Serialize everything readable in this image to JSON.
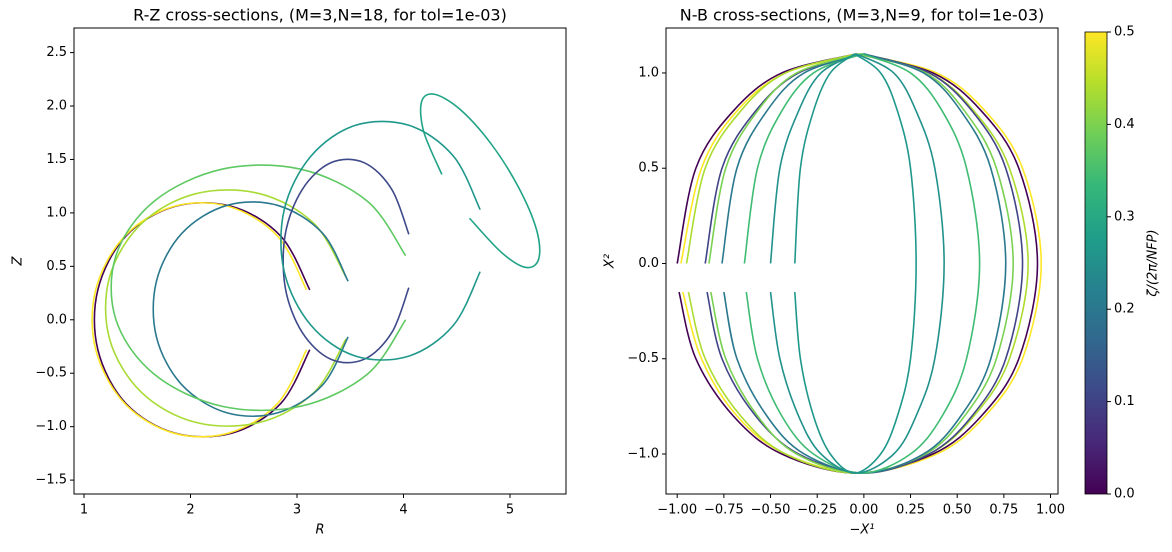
{
  "chart_data": [
    {
      "type": "line",
      "title": "R-Z cross-sections, (M=3,N=18, for tol=1e-03)",
      "xlabel": "R",
      "ylabel": "Z",
      "xlim": [
        0.906,
        5.526
      ],
      "ylim": [
        -1.63,
        2.73
      ],
      "xticks": [
        1,
        2,
        3,
        4,
        5
      ],
      "yticks": [
        {
          "value": -1.5,
          "label": "−1.5"
        },
        {
          "value": -1.0,
          "label": "−1.0"
        },
        {
          "value": -0.5,
          "label": "−0.5"
        },
        {
          "value": 0,
          "label": "0.0"
        },
        0.5,
        {
          "value": 1.0,
          "label": "1.0"
        },
        1.5,
        {
          "value": 2.0,
          "label": "2.0"
        },
        2.5
      ],
      "series": [
        {
          "color": "#440154",
          "x": [
            3.12,
            2.85,
            2.39,
            1.85,
            1.39,
            1.13,
            1.13,
            1.39,
            1.85,
            2.39,
            2.85,
            3.12
          ],
          "y": [
            0.28,
            0.78,
            1.06,
            1.06,
            0.78,
            0.28,
            -0.28,
            -0.78,
            -1.06,
            -1.06,
            -0.78,
            -0.28
          ]
        },
        {
          "color": "#fde725",
          "x": [
            3.09,
            2.82,
            2.36,
            1.84,
            1.38,
            1.11,
            1.11,
            1.38,
            1.84,
            2.36,
            2.82,
            3.09
          ],
          "y": [
            0.28,
            0.78,
            1.06,
            1.06,
            0.78,
            0.28,
            -0.28,
            -0.78,
            -1.06,
            -1.06,
            -0.78,
            -0.28
          ]
        },
        {
          "color": "#a8db34",
          "x": [
            3.46,
            3.16,
            2.65,
            2.05,
            1.54,
            1.24,
            1.24,
            1.54,
            2.05,
            2.65,
            3.16,
            3.46
          ],
          "y": [
            0.4,
            0.9,
            1.18,
            1.18,
            0.9,
            0.4,
            -0.18,
            -0.68,
            -0.96,
            -0.96,
            -0.68,
            -0.18
          ]
        },
        {
          "color": "#2a788e",
          "x": [
            3.48,
            3.24,
            2.82,
            2.34,
            1.92,
            1.68,
            1.68,
            1.92,
            2.34,
            2.82,
            3.24,
            3.48
          ],
          "y": [
            0.36,
            0.81,
            1.07,
            1.07,
            0.81,
            0.36,
            -0.16,
            -0.61,
            -0.87,
            -0.87,
            -0.61,
            -0.16
          ]
        },
        {
          "color": "#5ec962",
          "x": [
            4.02,
            3.66,
            3.03,
            2.3,
            1.66,
            1.3,
            1.3,
            1.66,
            2.3,
            3.03,
            3.66,
            4.02
          ],
          "y": [
            0.6,
            1.11,
            1.41,
            1.41,
            1.11,
            0.6,
            0.0,
            -0.51,
            -0.81,
            -0.81,
            -0.51,
            0.0
          ]
        },
        {
          "color": "#3e4a89",
          "x": [
            4.05,
            3.89,
            3.63,
            3.32,
            3.05,
            2.89,
            2.89,
            3.05,
            3.32,
            3.63,
            3.89,
            4.05
          ],
          "y": [
            0.8,
            1.22,
            1.47,
            1.47,
            1.22,
            0.8,
            0.3,
            -0.12,
            -0.37,
            -0.37,
            -0.12,
            0.3
          ]
        },
        {
          "color": "#1f988b",
          "x": [
            4.72,
            4.47,
            4.05,
            3.55,
            3.13,
            2.88,
            2.88,
            3.13,
            3.55,
            4.05,
            4.47,
            4.72
          ],
          "y": [
            1.03,
            1.53,
            1.82,
            1.82,
            1.53,
            1.03,
            0.45,
            -0.05,
            -0.34,
            -0.34,
            -0.05,
            0.45
          ]
        },
        {
          "color": "#20a386",
          "x": [
            4.62,
            4.92,
            5.15,
            5.27,
            5.25,
            5.08,
            4.82,
            4.53,
            4.29,
            4.17,
            4.19,
            4.36
          ],
          "y": [
            0.95,
            0.63,
            0.49,
            0.57,
            0.84,
            1.24,
            1.65,
            1.97,
            2.11,
            2.04,
            1.76,
            1.36
          ]
        }
      ]
    },
    {
      "type": "line",
      "title": "N-B cross-sections, (M=3,N=9, for tol=1e-03)",
      "xlabel": "−X¹",
      "ylabel": "X²",
      "xlim": [
        -1.06,
        1.04
      ],
      "ylim": [
        -1.21,
        1.236
      ],
      "xticks": [
        {
          "value": -1.0,
          "label": "−1.00"
        },
        {
          "value": -0.75,
          "label": "−0.75"
        },
        {
          "value": -0.5,
          "label": "−0.50"
        },
        {
          "value": -0.25,
          "label": "−0.25"
        },
        {
          "value": 0,
          "label": "0.00"
        },
        0.25,
        {
          "value": 0.5,
          "label": "0.50"
        },
        0.75,
        {
          "value": 1.0,
          "label": "1.00"
        }
      ],
      "yticks": [
        {
          "value": -1.0,
          "label": "−1.0"
        },
        {
          "value": -0.5,
          "label": "−0.5"
        },
        {
          "value": 0,
          "label": "0.0"
        },
        0.5,
        {
          "value": 1.0,
          "label": "1.0"
        }
      ],
      "y": [
        1.1,
        1.0,
        0.8,
        0.5,
        0,
        -0.5,
        -0.8,
        -1.0,
        -1.1,
        -1.0,
        -0.8,
        -0.5,
        -0.15,
        null,
        0,
        0.5,
        0.8,
        1.0,
        1.1
      ],
      "series": [
        {
          "color": "#fde725",
          "x": [
            -0.02,
            0.39,
            0.65,
            0.85,
            0.95,
            0.85,
            0.65,
            0.39,
            -0.02,
            -0.42,
            -0.68,
            -0.87,
            -0.97,
            null,
            -0.98,
            -0.87,
            -0.68,
            -0.42,
            -0.02
          ]
        },
        {
          "color": "#440154",
          "x": [
            -0.04,
            0.37,
            0.63,
            0.83,
            0.93,
            0.83,
            0.63,
            0.37,
            -0.04,
            -0.44,
            -0.7,
            -0.9,
            -0.99,
            null,
            -1.0,
            -0.9,
            -0.7,
            -0.44,
            -0.04
          ]
        },
        {
          "color": "#addc30",
          "x": [
            -0.04,
            0.35,
            0.59,
            0.78,
            0.88,
            0.78,
            0.59,
            0.35,
            -0.04,
            -0.42,
            -0.66,
            -0.85,
            -0.94,
            null,
            -0.95,
            -0.85,
            -0.66,
            -0.42,
            -0.04
          ]
        },
        {
          "color": "#414487",
          "x": [
            0,
            0.35,
            0.58,
            0.76,
            0.85,
            0.76,
            0.58,
            0.35,
            0,
            -0.35,
            -0.58,
            -0.76,
            -0.84,
            null,
            -0.85,
            -0.76,
            -0.58,
            -0.35,
            0
          ]
        },
        {
          "color": "#7ad151",
          "x": [
            -0.02,
            0.33,
            0.54,
            0.71,
            0.8,
            0.71,
            0.54,
            0.33,
            -0.02,
            -0.36,
            -0.57,
            -0.74,
            -0.82,
            null,
            -0.83,
            -0.74,
            -0.57,
            -0.36,
            -0.02
          ]
        },
        {
          "color": "#2a788e",
          "x": [
            0,
            0.32,
            0.52,
            0.68,
            0.76,
            0.68,
            0.52,
            0.32,
            0,
            -0.32,
            -0.52,
            -0.68,
            -0.75,
            null,
            -0.76,
            -0.68,
            -0.52,
            -0.32,
            0
          ]
        },
        {
          "color": "#3fbc73",
          "x": [
            -0.01,
            0.25,
            0.42,
            0.55,
            0.62,
            0.55,
            0.42,
            0.25,
            -0.01,
            -0.27,
            -0.44,
            -0.57,
            -0.63,
            null,
            -0.64,
            -0.57,
            -0.44,
            -0.27,
            -0.01
          ]
        },
        {
          "color": "#21918c",
          "x": [
            -0.04,
            0.16,
            0.28,
            0.38,
            0.43,
            0.38,
            0.28,
            0.16,
            -0.04,
            -0.23,
            -0.35,
            -0.45,
            -0.5,
            null,
            -0.5,
            -0.45,
            -0.35,
            -0.23,
            -0.04
          ]
        },
        {
          "color": "#1f988b",
          "x": [
            -0.05,
            0.09,
            0.18,
            0.25,
            0.28,
            0.25,
            0.18,
            0.09,
            -0.05,
            -0.18,
            -0.27,
            -0.34,
            -0.37,
            null,
            -0.37,
            -0.34,
            -0.27,
            -0.18,
            -0.05
          ]
        }
      ],
      "colorbar": {
        "label": "ζ/(2π/NFP)",
        "lim": [
          0,
          0.5
        ],
        "ticks": [
          {
            "value": 0,
            "label": "0.0"
          },
          0.1,
          0.2,
          0.3,
          0.4,
          0.5
        ],
        "colors": [
          "#440154",
          "#482878",
          "#3e4989",
          "#31688e",
          "#26828e",
          "#1f9e89",
          "#35b779",
          "#6ece58",
          "#b5de2b",
          "#fde725"
        ]
      }
    }
  ]
}
